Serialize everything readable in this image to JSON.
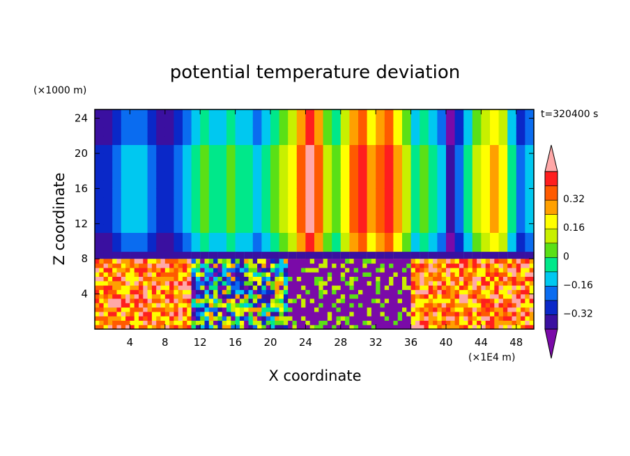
{
  "chart_data": {
    "type": "heatmap",
    "title": "potential temperature deviation",
    "xlabel": "X coordinate",
    "ylabel": "Z coordinate",
    "x_unit": "(×1E4 m)",
    "y_unit": "(×1000 m)",
    "time_label": "t=320400 s",
    "xlim": [
      0,
      50
    ],
    "ylim": [
      0,
      25
    ],
    "x_ticks": [
      "4",
      "8",
      "12",
      "16",
      "20",
      "24",
      "28",
      "32",
      "36",
      "40",
      "44",
      "48"
    ],
    "y_ticks": [
      "4",
      "8",
      "12",
      "16",
      "20",
      "24"
    ],
    "colorbar": {
      "levels": [
        -0.4,
        -0.32,
        -0.24,
        -0.16,
        -0.08,
        0,
        0.08,
        0.16,
        0.24,
        0.32,
        0.4
      ],
      "tick_labels": [
        "0.32",
        "0.16",
        "0",
        "−0.16",
        "−0.32"
      ],
      "colors": [
        "#7a0aa8",
        "#3a10a0",
        "#0a28c8",
        "#0a6cf0",
        "#00c8f0",
        "#00e88a",
        "#5ae016",
        "#c8f000",
        "#ffff00",
        "#ffa000",
        "#ff5a00",
        "#ff1e1e",
        "#ffa8a8"
      ]
    },
    "columns": [
      {
        "x": 0,
        "level": 2
      },
      {
        "x": 1,
        "level": 2
      },
      {
        "x": 2,
        "level": 3
      },
      {
        "x": 3,
        "level": 4
      },
      {
        "x": 4,
        "level": 4
      },
      {
        "x": 5,
        "level": 4
      },
      {
        "x": 6,
        "level": 3
      },
      {
        "x": 7,
        "level": 2
      },
      {
        "x": 8,
        "level": 2
      },
      {
        "x": 9,
        "level": 3
      },
      {
        "x": 10,
        "level": 4
      },
      {
        "x": 11,
        "level": 5
      },
      {
        "x": 12,
        "level": 6
      },
      {
        "x": 13,
        "level": 5
      },
      {
        "x": 14,
        "level": 5
      },
      {
        "x": 15,
        "level": 6
      },
      {
        "x": 16,
        "level": 5
      },
      {
        "x": 17,
        "level": 5
      },
      {
        "x": 18,
        "level": 4
      },
      {
        "x": 19,
        "level": 5
      },
      {
        "x": 20,
        "level": 6
      },
      {
        "x": 21,
        "level": 7
      },
      {
        "x": 22,
        "level": 8
      },
      {
        "x": 23,
        "level": 10
      },
      {
        "x": 24,
        "level": 12
      },
      {
        "x": 25,
        "level": 10
      },
      {
        "x": 26,
        "level": 7
      },
      {
        "x": 27,
        "level": 6
      },
      {
        "x": 28,
        "level": 8
      },
      {
        "x": 29,
        "level": 10
      },
      {
        "x": 30,
        "level": 11
      },
      {
        "x": 31,
        "level": 9
      },
      {
        "x": 32,
        "level": 10
      },
      {
        "x": 33,
        "level": 11
      },
      {
        "x": 34,
        "level": 9
      },
      {
        "x": 35,
        "level": 7
      },
      {
        "x": 36,
        "level": 5
      },
      {
        "x": 37,
        "level": 6
      },
      {
        "x": 38,
        "level": 5
      },
      {
        "x": 39,
        "level": 4
      },
      {
        "x": 40,
        "level": 1
      },
      {
        "x": 41,
        "level": 3
      },
      {
        "x": 42,
        "level": 5
      },
      {
        "x": 43,
        "level": 7
      },
      {
        "x": 44,
        "level": 8
      },
      {
        "x": 45,
        "level": 9
      },
      {
        "x": 46,
        "level": 8
      },
      {
        "x": 47,
        "level": 5
      },
      {
        "x": 48,
        "level": 3
      },
      {
        "x": 49,
        "level": 4
      }
    ],
    "lower_layer_top": 8,
    "lower_layer_note": "turbulent mixed layer below z≈8; strong positive deviations at x 0–10 and x 35–50, negative (purple) at x 22–36"
  }
}
